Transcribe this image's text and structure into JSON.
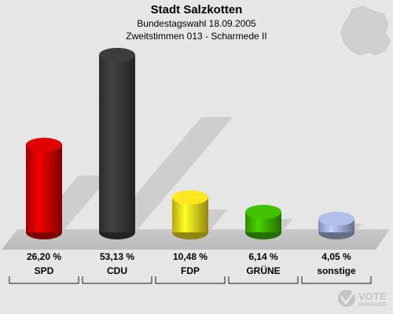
{
  "header": {
    "title": "Stadt Salzkotten",
    "subtitle1": "Bundestagswahl 18.09.2005",
    "subtitle2": "Zweitstimmen 013 - Scharmede II"
  },
  "logo": {
    "text_line1": "VOTE",
    "text_line2": "MANAGER"
  },
  "chart_data": {
    "type": "bar",
    "categories": [
      "SPD",
      "CDU",
      "FDP",
      "GRÜNE",
      "sonstige"
    ],
    "values": [
      26.2,
      53.13,
      10.48,
      6.14,
      4.05
    ],
    "value_labels": [
      "26,20 %",
      "53,13 %",
      "10,48 %",
      "6,14 %",
      "4,05 %"
    ],
    "colors": [
      "#d40000",
      "#3a3a3a",
      "#f3dd1e",
      "#3fb800",
      "#a9b6e0"
    ],
    "ylim": [
      0,
      53.13
    ],
    "grid": false,
    "legend": "none"
  }
}
